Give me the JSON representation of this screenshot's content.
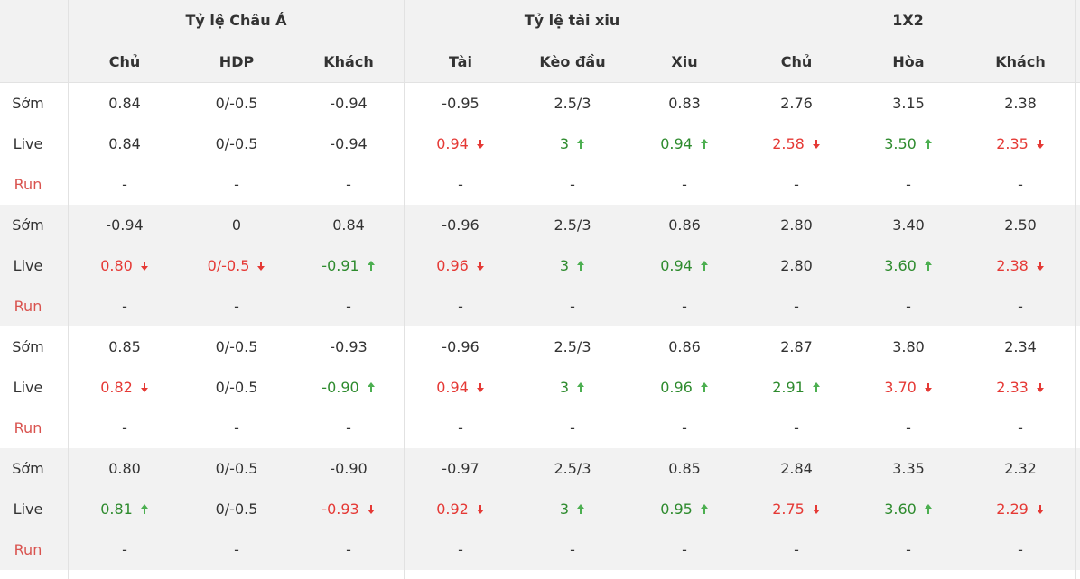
{
  "header": {
    "groups": [
      "Tỷ lệ Châu Á",
      "Tỷ lệ tài xiu",
      "1X2"
    ],
    "columns": [
      "Chủ",
      "HDP",
      "Khách",
      "Tài",
      "Kèo đầu",
      "Xiu",
      "Chủ",
      "Hòa",
      "Khách"
    ]
  },
  "colors": {
    "up": "#2e8b2e",
    "down": "#e53935",
    "run_label": "#d9534f",
    "band": "#f2f2f2"
  },
  "groups": [
    {
      "rows": [
        {
          "label": "Sớm",
          "cells": [
            [
              "0.84",
              ""
            ],
            [
              "0/-0.5",
              ""
            ],
            [
              "-0.94",
              ""
            ],
            [
              "-0.95",
              ""
            ],
            [
              "2.5/3",
              ""
            ],
            [
              "0.83",
              ""
            ],
            [
              "2.76",
              ""
            ],
            [
              "3.15",
              ""
            ],
            [
              "2.38",
              ""
            ]
          ]
        },
        {
          "label": "Live",
          "cells": [
            [
              "0.84",
              ""
            ],
            [
              "0/-0.5",
              ""
            ],
            [
              "-0.94",
              ""
            ],
            [
              "0.94",
              "down"
            ],
            [
              "3",
              "up"
            ],
            [
              "0.94",
              "up"
            ],
            [
              "2.58",
              "down"
            ],
            [
              "3.50",
              "up"
            ],
            [
              "2.35",
              "down"
            ]
          ]
        },
        {
          "label": "Run",
          "cells": [
            [
              "-",
              ""
            ],
            [
              "-",
              ""
            ],
            [
              "-",
              ""
            ],
            [
              "-",
              ""
            ],
            [
              "-",
              ""
            ],
            [
              "-",
              ""
            ],
            [
              "-",
              ""
            ],
            [
              "-",
              ""
            ],
            [
              "-",
              ""
            ]
          ]
        }
      ]
    },
    {
      "rows": [
        {
          "label": "Sớm",
          "cells": [
            [
              "-0.94",
              ""
            ],
            [
              "0",
              ""
            ],
            [
              "0.84",
              ""
            ],
            [
              "-0.96",
              ""
            ],
            [
              "2.5/3",
              ""
            ],
            [
              "0.86",
              ""
            ],
            [
              "2.80",
              ""
            ],
            [
              "3.40",
              ""
            ],
            [
              "2.50",
              ""
            ]
          ]
        },
        {
          "label": "Live",
          "cells": [
            [
              "0.80",
              "down"
            ],
            [
              "0/-0.5",
              "down"
            ],
            [
              "-0.91",
              "up"
            ],
            [
              "0.96",
              "down"
            ],
            [
              "3",
              "up"
            ],
            [
              "0.94",
              "up"
            ],
            [
              "2.80",
              ""
            ],
            [
              "3.60",
              "up"
            ],
            [
              "2.38",
              "down"
            ]
          ]
        },
        {
          "label": "Run",
          "cells": [
            [
              "-",
              ""
            ],
            [
              "-",
              ""
            ],
            [
              "-",
              ""
            ],
            [
              "-",
              ""
            ],
            [
              "-",
              ""
            ],
            [
              "-",
              ""
            ],
            [
              "-",
              ""
            ],
            [
              "-",
              ""
            ],
            [
              "-",
              ""
            ]
          ]
        }
      ]
    },
    {
      "rows": [
        {
          "label": "Sớm",
          "cells": [
            [
              "0.85",
              ""
            ],
            [
              "0/-0.5",
              ""
            ],
            [
              "-0.93",
              ""
            ],
            [
              "-0.96",
              ""
            ],
            [
              "2.5/3",
              ""
            ],
            [
              "0.86",
              ""
            ],
            [
              "2.87",
              ""
            ],
            [
              "3.80",
              ""
            ],
            [
              "2.34",
              ""
            ]
          ]
        },
        {
          "label": "Live",
          "cells": [
            [
              "0.82",
              "down"
            ],
            [
              "0/-0.5",
              ""
            ],
            [
              "-0.90",
              "up"
            ],
            [
              "0.94",
              "down"
            ],
            [
              "3",
              "up"
            ],
            [
              "0.96",
              "up"
            ],
            [
              "2.91",
              "up"
            ],
            [
              "3.70",
              "down"
            ],
            [
              "2.33",
              "down"
            ]
          ]
        },
        {
          "label": "Run",
          "cells": [
            [
              "-",
              ""
            ],
            [
              "-",
              ""
            ],
            [
              "-",
              ""
            ],
            [
              "-",
              ""
            ],
            [
              "-",
              ""
            ],
            [
              "-",
              ""
            ],
            [
              "-",
              ""
            ],
            [
              "-",
              ""
            ],
            [
              "-",
              ""
            ]
          ]
        }
      ]
    },
    {
      "rows": [
        {
          "label": "Sớm",
          "cells": [
            [
              "0.80",
              ""
            ],
            [
              "0/-0.5",
              ""
            ],
            [
              "-0.90",
              ""
            ],
            [
              "-0.97",
              ""
            ],
            [
              "2.5/3",
              ""
            ],
            [
              "0.85",
              ""
            ],
            [
              "2.84",
              ""
            ],
            [
              "3.35",
              ""
            ],
            [
              "2.32",
              ""
            ]
          ]
        },
        {
          "label": "Live",
          "cells": [
            [
              "0.81",
              "up"
            ],
            [
              "0/-0.5",
              ""
            ],
            [
              "-0.93",
              "down"
            ],
            [
              "0.92",
              "down"
            ],
            [
              "3",
              "up"
            ],
            [
              "0.95",
              "up"
            ],
            [
              "2.75",
              "down"
            ],
            [
              "3.60",
              "up"
            ],
            [
              "2.29",
              "down"
            ]
          ]
        },
        {
          "label": "Run",
          "cells": [
            [
              "-",
              ""
            ],
            [
              "-",
              ""
            ],
            [
              "-",
              ""
            ],
            [
              "-",
              ""
            ],
            [
              "-",
              ""
            ],
            [
              "-",
              ""
            ],
            [
              "-",
              ""
            ],
            [
              "-",
              ""
            ],
            [
              "-",
              ""
            ]
          ]
        }
      ]
    }
  ]
}
